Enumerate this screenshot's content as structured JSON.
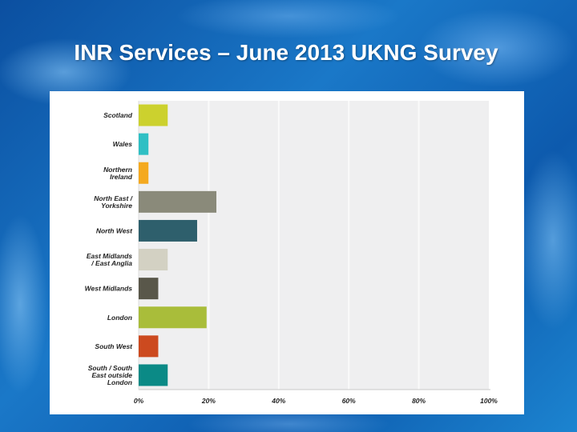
{
  "title": "INR Services – June 2013 UKNG Survey",
  "chart_data": {
    "type": "bar",
    "orientation": "horizontal",
    "title": "INR Services – June 2013 UKNG Survey",
    "categories": [
      [
        "Scotland"
      ],
      [
        "Wales"
      ],
      [
        "Northern",
        "Ireland"
      ],
      [
        "North East /",
        "Yorkshire"
      ],
      [
        "North West"
      ],
      [
        "East Midlands",
        "/ East Anglia"
      ],
      [
        "West Midlands"
      ],
      [
        "London"
      ],
      [
        "South West"
      ],
      [
        "South / South",
        "East outside",
        "London"
      ]
    ],
    "values": [
      8.3,
      2.8,
      2.8,
      22.2,
      16.7,
      8.3,
      5.6,
      19.4,
      5.6,
      8.3
    ],
    "colors": [
      "#ccd12e",
      "#2fbfc4",
      "#f4a91f",
      "#8a8a7a",
      "#2e5f6c",
      "#d3d1c3",
      "#59574a",
      "#a9bd3a",
      "#cc4a1f",
      "#0b8a86"
    ],
    "xlim": [
      0,
      100
    ],
    "x_ticks": [
      "0%",
      "20%",
      "40%",
      "60%",
      "80%",
      "100%"
    ],
    "xlabel": "",
    "ylabel": "",
    "grid": true
  }
}
